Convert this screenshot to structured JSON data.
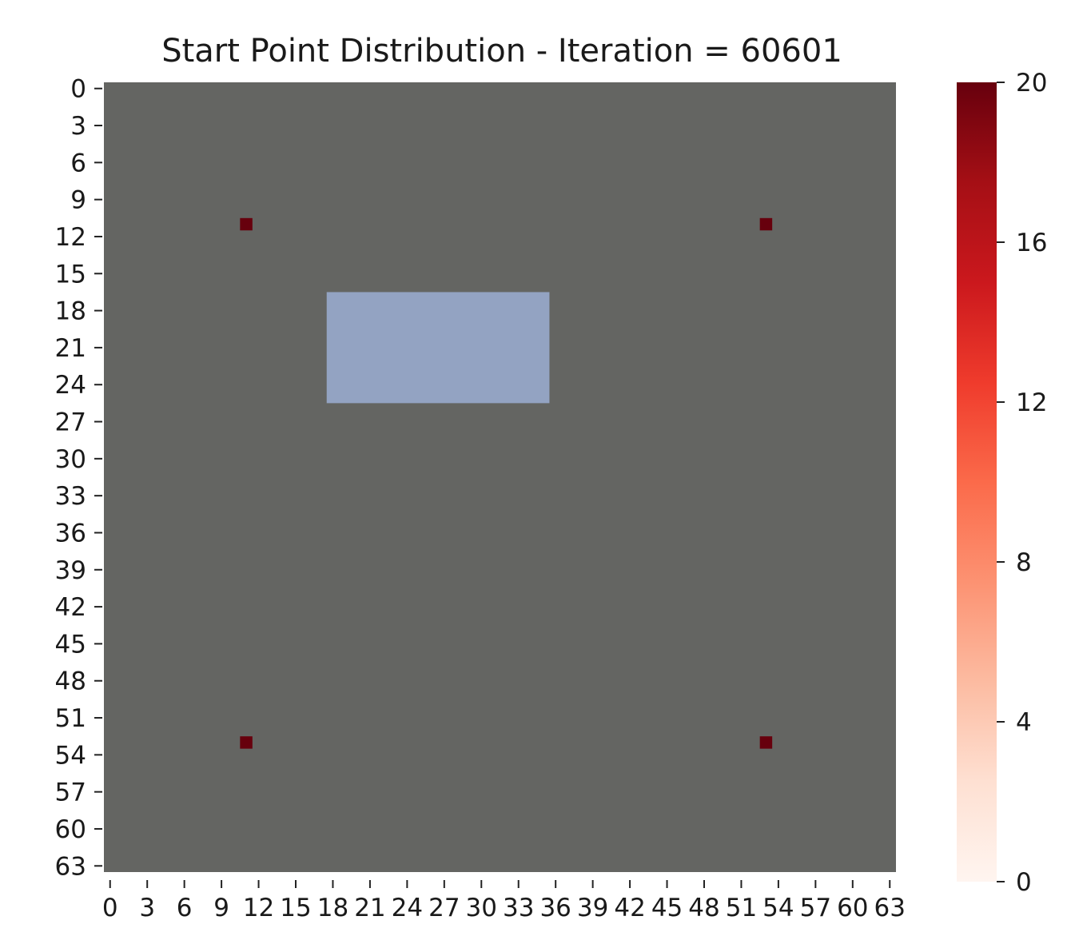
{
  "chart_data": {
    "type": "heatmap",
    "title": "Start Point Distribution - Iteration = 60601",
    "xlabel": "",
    "ylabel": "",
    "grid_size": [
      64,
      64
    ],
    "x_ticks": [
      0,
      3,
      6,
      9,
      12,
      15,
      18,
      21,
      24,
      27,
      30,
      33,
      36,
      39,
      42,
      45,
      48,
      51,
      54,
      57,
      60,
      63
    ],
    "x_tick_labels": [
      "0",
      "3",
      "6",
      "9",
      "12",
      "15",
      "18",
      "21",
      "24",
      "27",
      "30",
      "33",
      "36",
      "39",
      "42",
      "45",
      "48",
      "51",
      "54",
      "57",
      "60",
      "63"
    ],
    "y_ticks": [
      0,
      3,
      6,
      9,
      12,
      15,
      18,
      21,
      24,
      27,
      30,
      33,
      36,
      39,
      42,
      45,
      48,
      51,
      54,
      57,
      60,
      63
    ],
    "y_tick_labels": [
      "0",
      "3",
      "6",
      "9",
      "12",
      "15",
      "18",
      "21",
      "24",
      "27",
      "30",
      "33",
      "36",
      "39",
      "42",
      "45",
      "48",
      "51",
      "54",
      "57",
      "60",
      "63"
    ],
    "background_color": "#646562",
    "obstacle": {
      "color": "#93a3c2",
      "x_range": [
        18,
        36
      ],
      "y_range": [
        17,
        26
      ]
    },
    "points": [
      {
        "x": 11,
        "y": 11,
        "value": 20
      },
      {
        "x": 53,
        "y": 11,
        "value": 20
      },
      {
        "x": 11,
        "y": 53,
        "value": 20
      },
      {
        "x": 53,
        "y": 53,
        "value": 20
      }
    ],
    "colorbar": {
      "colormap": "Reds",
      "min": 0,
      "max": 20,
      "ticks": [
        0,
        4,
        8,
        12,
        16,
        20
      ],
      "tick_labels": [
        "0",
        "4",
        "8",
        "12",
        "16",
        "20"
      ],
      "colors": [
        "#fff5f0",
        "#fee0d2",
        "#fcbba1",
        "#fc9272",
        "#fb6a4a",
        "#ef3b2c",
        "#cb181d",
        "#a50f15",
        "#67000d"
      ]
    }
  }
}
